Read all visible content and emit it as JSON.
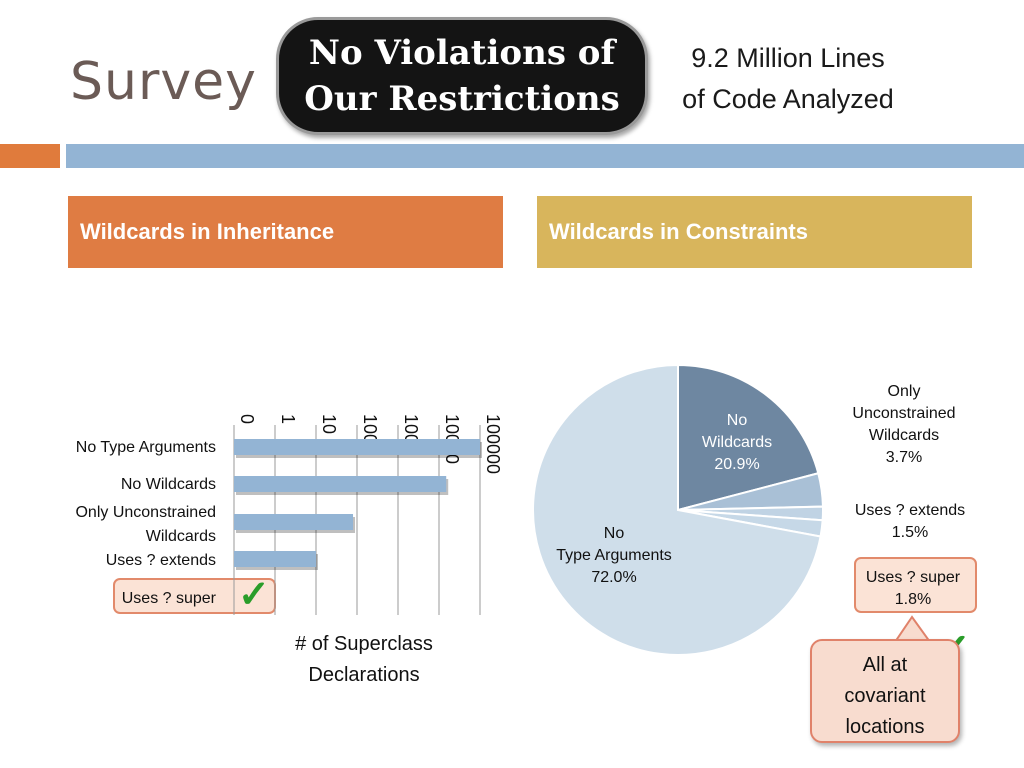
{
  "slide": {
    "title": "Survey",
    "badge": {
      "line1": "No Violations of",
      "line2": "Our Restrictions"
    },
    "lines_analyzed": {
      "line1": "9.2 Million Lines",
      "line2": "of Code Analyzed"
    },
    "left_heading": "Wildcards in Inheritance",
    "right_heading": "Wildcards in Constraints",
    "callout": {
      "line1": "All at",
      "line2": "covariant",
      "line3": "locations"
    },
    "checkmark": "✓",
    "colors": {
      "orange": "#e07b3c",
      "blue": "#93b4d4",
      "gold": "#d8b55c",
      "pie_dark": "#6e87a1",
      "pie_light": "#cfdeea",
      "check": "#2a9d2a"
    }
  },
  "chart_data": [
    {
      "type": "bar",
      "orientation": "horizontal",
      "scale": "log",
      "xlabel": {
        "line1": "# of Superclass",
        "line2": "Declarations"
      },
      "ticks": [
        "0",
        "1",
        "10",
        "100",
        "1000",
        "10000",
        "100000"
      ],
      "categories": [
        {
          "line1": "No Type Arguments",
          "line2": ""
        },
        {
          "line1": "No Wildcards",
          "line2": ""
        },
        {
          "line1": "Only Unconstrained",
          "line2": "Wildcards"
        },
        {
          "line1": "Uses ? extends",
          "line2": ""
        },
        {
          "line1": "Uses ? super",
          "line2": ""
        }
      ],
      "values": [
        100000,
        15000,
        80,
        10,
        0
      ],
      "highlight": "Uses ? super"
    },
    {
      "type": "pie",
      "slices": [
        {
          "line1": "No",
          "line2": "Wildcards",
          "value_label": "20.9%",
          "value": 20.9
        },
        {
          "line1": "Only",
          "line2": "Unconstrained",
          "line3": "Wildcards",
          "value_label": "3.7%",
          "value": 3.7
        },
        {
          "line1": "Uses ? extends",
          "line2": "",
          "value_label": "1.5%",
          "value": 1.5
        },
        {
          "line1": "Uses ? super",
          "line2": "",
          "value_label": "1.8%",
          "value": 1.8
        },
        {
          "line1": "No",
          "line2": "Type Arguments",
          "value_label": "72.0%",
          "value": 72.0
        }
      ]
    }
  ]
}
